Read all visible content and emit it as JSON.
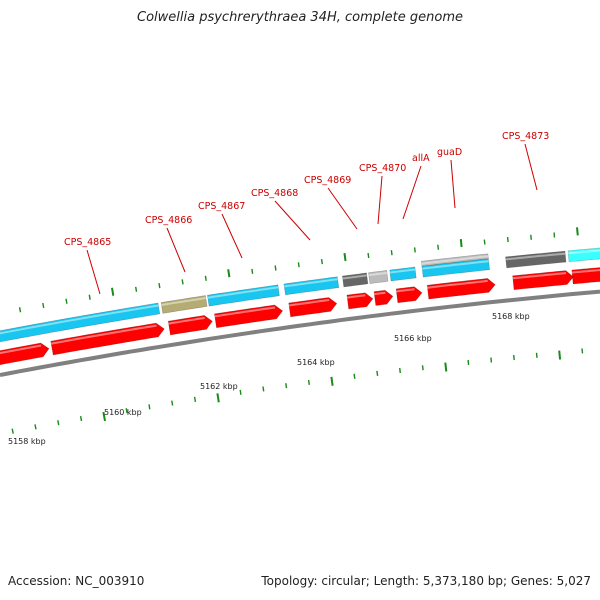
{
  "title": "Colwellia psychrerythraea 34H, complete genome",
  "footer": {
    "accession": "Accession: NC_003910",
    "topology": "Topology: circular; Length: 5,373,180 bp; Genes: 5,027"
  },
  "colors": {
    "cds": "#ff0000",
    "gene": "#19c6ef",
    "gene_dark": "#666666",
    "gene_light": "#bbbbbb",
    "gene_olive": "#b4ac72",
    "gene_cyan": "#3affff",
    "backbone": "#808080",
    "tick": "#1a8a1a",
    "label": "#cc0000"
  },
  "scale_labels": [
    "5158 kbp",
    "5160 kbp",
    "5162 kbp",
    "5164 kbp",
    "5166 kbp",
    "5168 kbp"
  ],
  "gene_labels": [
    "CPS_4865",
    "CPS_4866",
    "CPS_4867",
    "CPS_4868",
    "CPS_4869",
    "CPS_4870",
    "allA",
    "guaD",
    "CPS_4873"
  ]
}
